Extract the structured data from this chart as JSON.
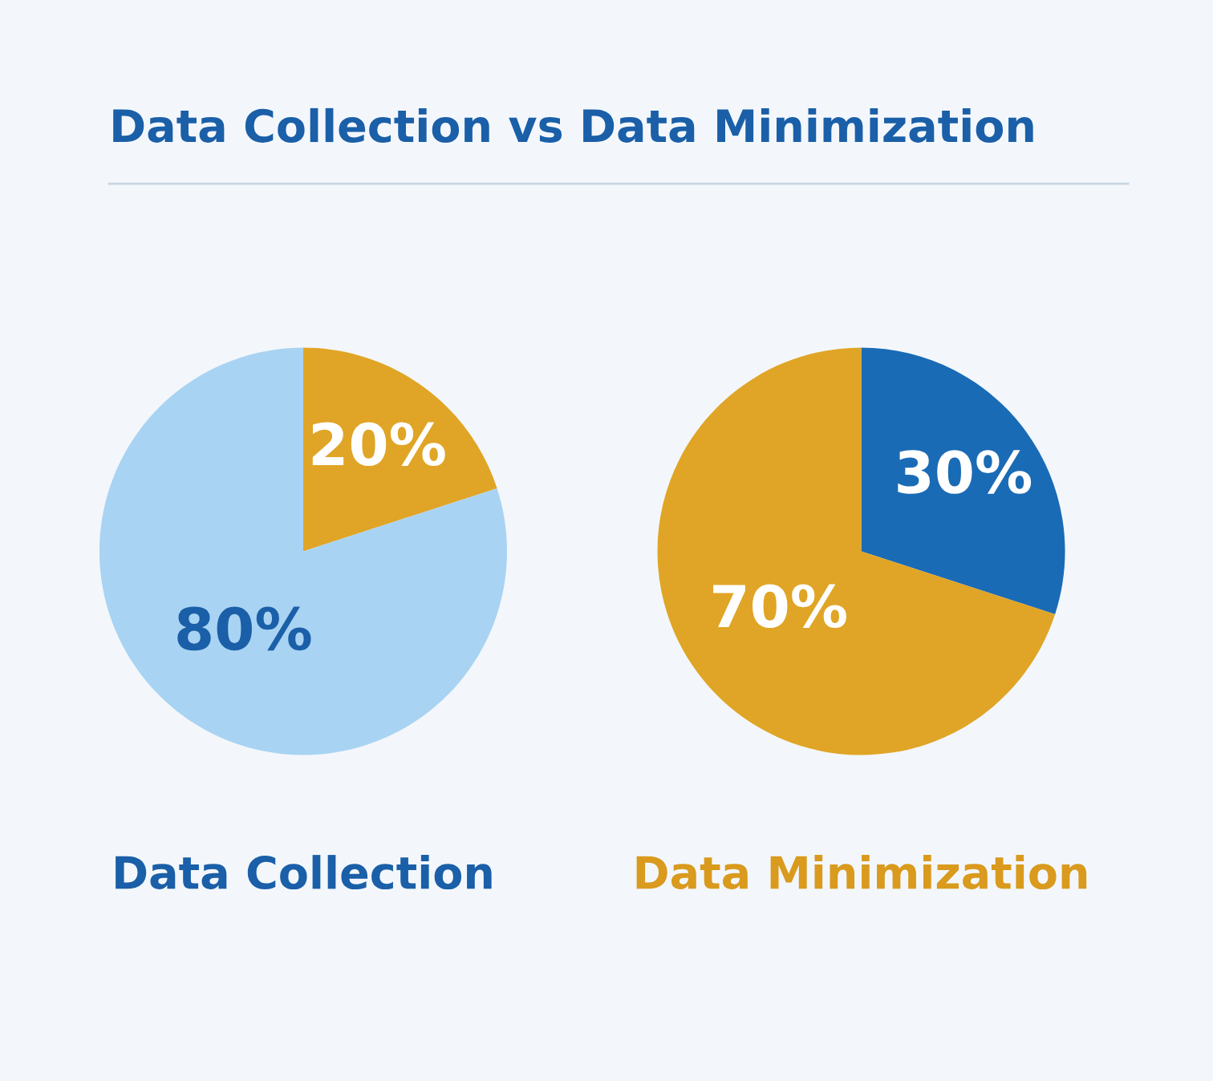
{
  "chart_data": [
    {
      "type": "pie",
      "title": "Data Collection vs Data Minimization",
      "xlabel": "Data Collection",
      "categories": [
        null,
        null
      ],
      "values": [
        20,
        80
      ],
      "colors": [
        "#e0a526",
        "#a9d3f2"
      ],
      "value_labels": [
        "20%",
        "80%"
      ]
    },
    {
      "type": "pie",
      "xlabel": "Data Minimization",
      "categories": [
        null,
        null
      ],
      "values": [
        30,
        70
      ],
      "colors": [
        "#1a6bb5",
        "#e0a526"
      ],
      "value_labels": [
        "30%",
        "70%"
      ]
    }
  ]
}
